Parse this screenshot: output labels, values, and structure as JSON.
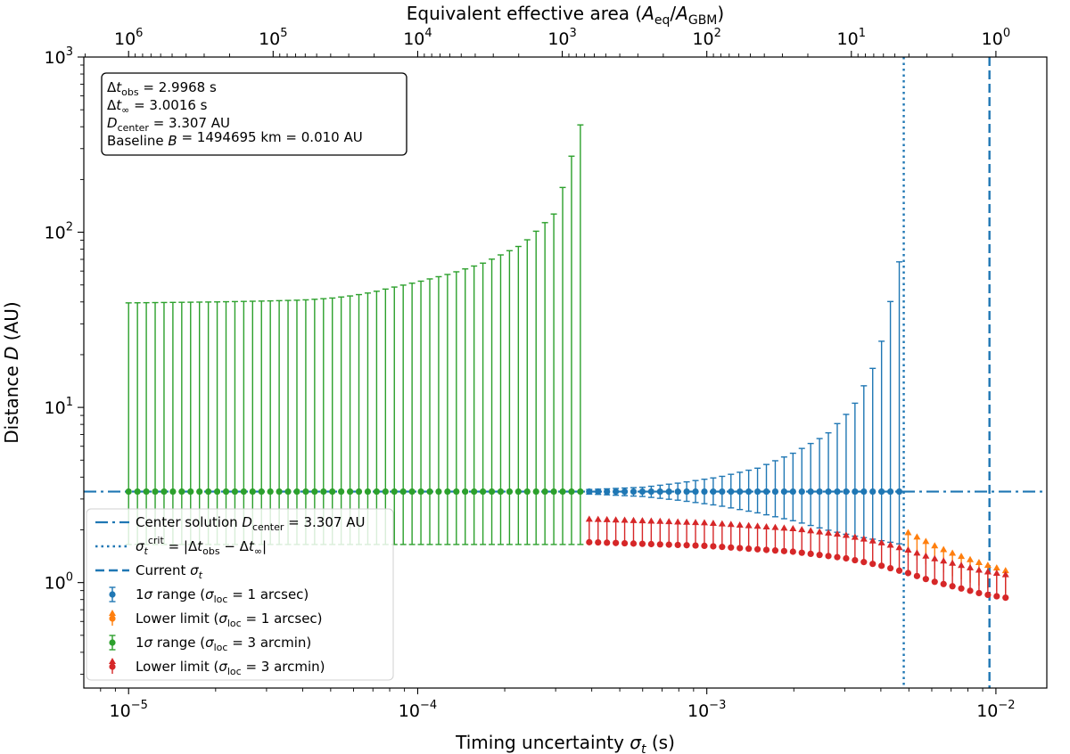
{
  "chart_data": {
    "type": "errorbar",
    "xscale": "log",
    "yscale": "log",
    "xlim": [
      7e-06,
      0.015
    ],
    "ylim": [
      0.25,
      1000
    ],
    "xlabel": "Timing uncertainty σ_t (s)",
    "xlabel_parts": {
      "pre": "Timing uncertainty ",
      "sym": "σ",
      "sub": "t",
      "post": " (s)"
    },
    "ylabel_parts": {
      "pre": "Distance ",
      "sym": "D",
      "post": " (AU)"
    },
    "top_axis": {
      "label_parts": {
        "pre": "Equivalent effective area (",
        "a1": "A",
        "s1": "eq",
        "slash": "/",
        "a2": "A",
        "s2": "GBM",
        "post": ")"
      },
      "ticks": [
        {
          "exp": "6",
          "x": 1e-05
        },
        {
          "exp": "5",
          "x": 3.162e-05
        },
        {
          "exp": "4",
          "x": 0.0001
        },
        {
          "exp": "3",
          "x": 0.0003162
        },
        {
          "exp": "2",
          "x": 0.001
        },
        {
          "exp": "1",
          "x": 0.003162
        },
        {
          "exp": "0",
          "x": 0.01
        }
      ]
    },
    "x_ticks": [
      {
        "exp": "−5",
        "value": 1e-05
      },
      {
        "exp": "−4",
        "value": 0.0001
      },
      {
        "exp": "−3",
        "value": 0.001
      },
      {
        "exp": "−2",
        "value": 0.01
      }
    ],
    "y_ticks": [
      {
        "exp": "0",
        "value": 1
      },
      {
        "exp": "1",
        "value": 10
      },
      {
        "exp": "2",
        "value": 100
      },
      {
        "exp": "3",
        "value": 1000
      }
    ],
    "info_box": [
      {
        "sym": "Δt",
        "sub": "obs",
        "rest": " = 2.9968 s"
      },
      {
        "sym": "Δt",
        "sub": "∞",
        "rest": " = 3.0016 s"
      },
      {
        "sym": "D",
        "sub": "center",
        "rest": " = 3.307 AU"
      },
      {
        "pre": "Baseline ",
        "sym": "B",
        "rest": " = 1494695 km = 0.010 AU"
      }
    ],
    "center_solution": 3.307,
    "sigma_crit": 0.0048,
    "sigma_current": 0.0095,
    "sweep": {
      "sigma_min": 1e-05,
      "sigma_max": 0.0108,
      "n_points": 100,
      "green_last_sigma": 0.00039,
      "blue_last_sigma": 0.00467,
      "green_upper": [
        39.5,
        40.0,
        40.5,
        41.0,
        42.0,
        43.5,
        45.5,
        48.0,
        52.0,
        58.0,
        67.0,
        85.0,
        130.0,
        600.0
      ],
      "green_upper_sigma": [
        1e-05,
        2e-05,
        3e-05,
        4e-05,
        5e-05,
        6e-05,
        7e-05,
        8e-05,
        0.0001,
        0.00013,
        0.00017,
        0.00023,
        0.0003,
        0.00039
      ],
      "green_lower": 1.65,
      "blue_upper": [
        3.4,
        3.5,
        3.7,
        4.0,
        4.5,
        5.5,
        7.0,
        10.0,
        19.0,
        72.0
      ],
      "blue_upper_sigma": [
        0.0004,
        0.0006,
        0.0008,
        0.0011,
        0.0015,
        0.002,
        0.0026,
        0.0032,
        0.0039,
        0.00467
      ],
      "blue_lower": [
        3.2,
        3.1,
        2.95,
        2.75,
        2.5,
        2.25,
        2.0,
        1.85,
        1.75,
        1.66
      ],
      "red_limit": [
        1.7,
        1.62,
        1.5,
        1.38,
        1.25,
        1.13,
        1.02,
        0.93,
        0.86,
        0.82
      ],
      "limit_sigma": [
        0.0004,
        0.001,
        0.002,
        0.003,
        0.004,
        0.005,
        0.006,
        0.0075,
        0.009,
        0.0108
      ],
      "orange_limit": [
        2.0,
        1.82,
        1.65,
        1.52,
        1.4,
        1.3,
        1.2
      ],
      "orange_sigma": [
        0.0049,
        0.0055,
        0.0062,
        0.007,
        0.008,
        0.0092,
        0.0108
      ]
    },
    "legend": {
      "placement": "lower-left",
      "items": [
        {
          "kind": "dashdot",
          "color": "#1f77b4",
          "parts": [
            {
              "t": "Center solution "
            },
            {
              "t": "D",
              "i": true
            },
            {
              "t": "center",
              "sub": true
            },
            {
              "t": " = 3.307 AU"
            }
          ]
        },
        {
          "kind": "dotted",
          "color": "#1f77b4",
          "parts": [
            {
              "t": "σ",
              "i": true
            },
            {
              "t": "t",
              "sub": true,
              "i": true
            },
            {
              "t": "crit",
              "sup": true
            },
            {
              "t": " = |Δ"
            },
            {
              "t": "t",
              "i": true
            },
            {
              "t": "obs",
              "sub": true
            },
            {
              "t": " − Δ"
            },
            {
              "t": "t",
              "i": true
            },
            {
              "t": "∞",
              "sub": true
            },
            {
              "t": "|"
            }
          ]
        },
        {
          "kind": "dashed",
          "color": "#1f77b4",
          "parts": [
            {
              "t": "Current "
            },
            {
              "t": "σ",
              "i": true
            },
            {
              "t": "t",
              "sub": true,
              "i": true
            }
          ]
        },
        {
          "kind": "errbar",
          "color": "#1f77b4",
          "parts": [
            {
              "t": "1"
            },
            {
              "t": "σ",
              "i": true
            },
            {
              "t": " range ("
            },
            {
              "t": "σ",
              "i": true
            },
            {
              "t": "loc",
              "sub": true
            },
            {
              "t": " = 1 arcsec)"
            }
          ]
        },
        {
          "kind": "arrow",
          "color": "#ff7f0e",
          "parts": [
            {
              "t": "Lower limit ("
            },
            {
              "t": "σ",
              "i": true
            },
            {
              "t": "loc",
              "sub": true
            },
            {
              "t": " = 1 arcsec)"
            }
          ]
        },
        {
          "kind": "errbar",
          "color": "#2ca02c",
          "parts": [
            {
              "t": "1"
            },
            {
              "t": "σ",
              "i": true
            },
            {
              "t": " range ("
            },
            {
              "t": "σ",
              "i": true
            },
            {
              "t": "loc",
              "sub": true
            },
            {
              "t": " = 3 arcmin)"
            }
          ]
        },
        {
          "kind": "arrowdot",
          "color": "#d62728",
          "parts": [
            {
              "t": "Lower limit ("
            },
            {
              "t": "σ",
              "i": true
            },
            {
              "t": "loc",
              "sub": true
            },
            {
              "t": " = 3 arcmin)"
            }
          ]
        }
      ]
    },
    "colors": {
      "blue": "#1f77b4",
      "orange": "#ff7f0e",
      "green": "#2ca02c",
      "red": "#d62728"
    }
  }
}
